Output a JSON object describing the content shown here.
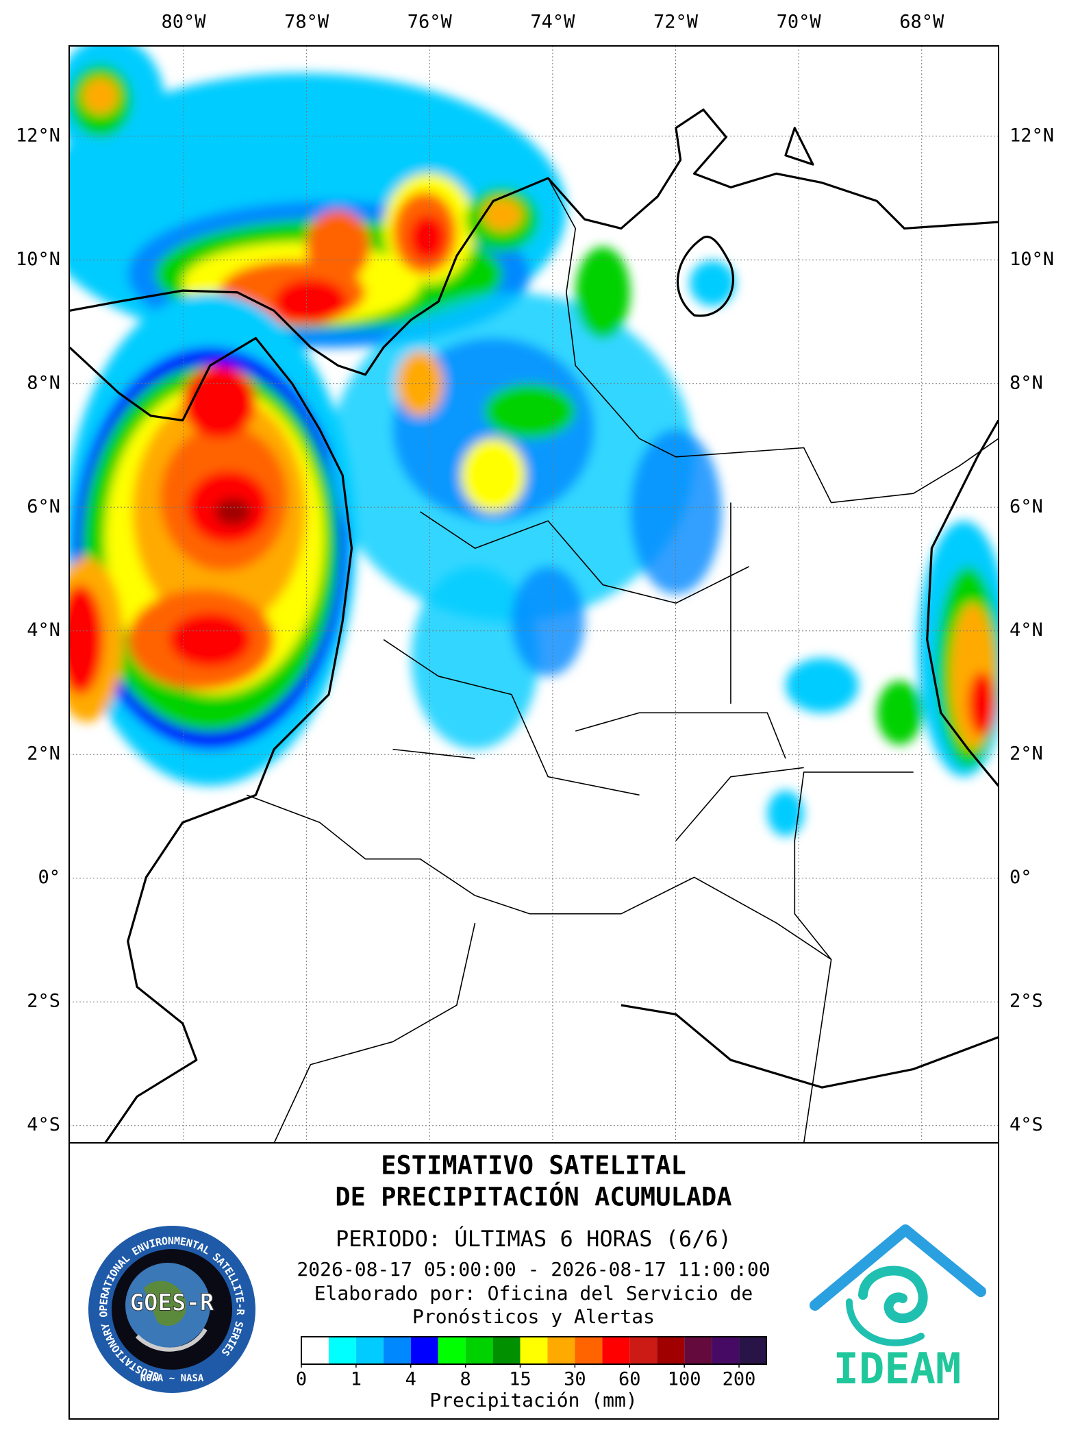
{
  "map": {
    "lon_ticks": [
      {
        "value": -80,
        "label": "80°W"
      },
      {
        "value": -78,
        "label": "78°W"
      },
      {
        "value": -76,
        "label": "76°W"
      },
      {
        "value": -74,
        "label": "74°W"
      },
      {
        "value": -72,
        "label": "72°W"
      },
      {
        "value": -70,
        "label": "70°W"
      },
      {
        "value": -68,
        "label": "68°W"
      }
    ],
    "lat_ticks": [
      {
        "value": 12,
        "label": "12°N"
      },
      {
        "value": 10,
        "label": "10°N"
      },
      {
        "value": 8,
        "label": "8°N"
      },
      {
        "value": 6,
        "label": "6°N"
      },
      {
        "value": 4,
        "label": "4°N"
      },
      {
        "value": 2,
        "label": "2°N"
      },
      {
        "value": 0,
        "label": "0°"
      },
      {
        "value": -2,
        "label": "2°S"
      },
      {
        "value": -4,
        "label": "4°S"
      }
    ],
    "xlim": [
      -81.86,
      -66.75
    ],
    "ylim": [
      -4.28,
      13.46
    ]
  },
  "legend": {
    "title": "ESTIMATIVO SATELITAL",
    "subtitle": "DE PRECIPITACIÓN ACUMULADA",
    "period": "PERIODO: ÚLTIMAS 6 HORAS (6/6)",
    "dates": "2026-08-17 05:00:00 - 2026-08-17 11:00:00",
    "credit": [
      "Elaborado por: Oficina del Servicio de",
      "Pronósticos y Alertas"
    ],
    "colorbar": {
      "colors": [
        "#ffffff",
        "#00ffff",
        "#00ccff",
        "#0088ff",
        "#0000ff",
        "#00ff00",
        "#00d200",
        "#009000",
        "#ffff00",
        "#ffaa00",
        "#ff6400",
        "#ff0000",
        "#cc1a14",
        "#a00000",
        "#640a3c",
        "#460a64",
        "#281446"
      ],
      "ticks": [
        0,
        1,
        4,
        8,
        15,
        30,
        60,
        100,
        200
      ],
      "label": "Precipitación (mm)"
    }
  },
  "logos": {
    "goes": {
      "name": "GOES-R",
      "ring": "GEOSTATIONARY OPERATIONAL ENVIRONMENTAL SATELLITE-R SERIES",
      "footer": "NOAA ~ NASA"
    },
    "ideam": "IDEAM"
  }
}
